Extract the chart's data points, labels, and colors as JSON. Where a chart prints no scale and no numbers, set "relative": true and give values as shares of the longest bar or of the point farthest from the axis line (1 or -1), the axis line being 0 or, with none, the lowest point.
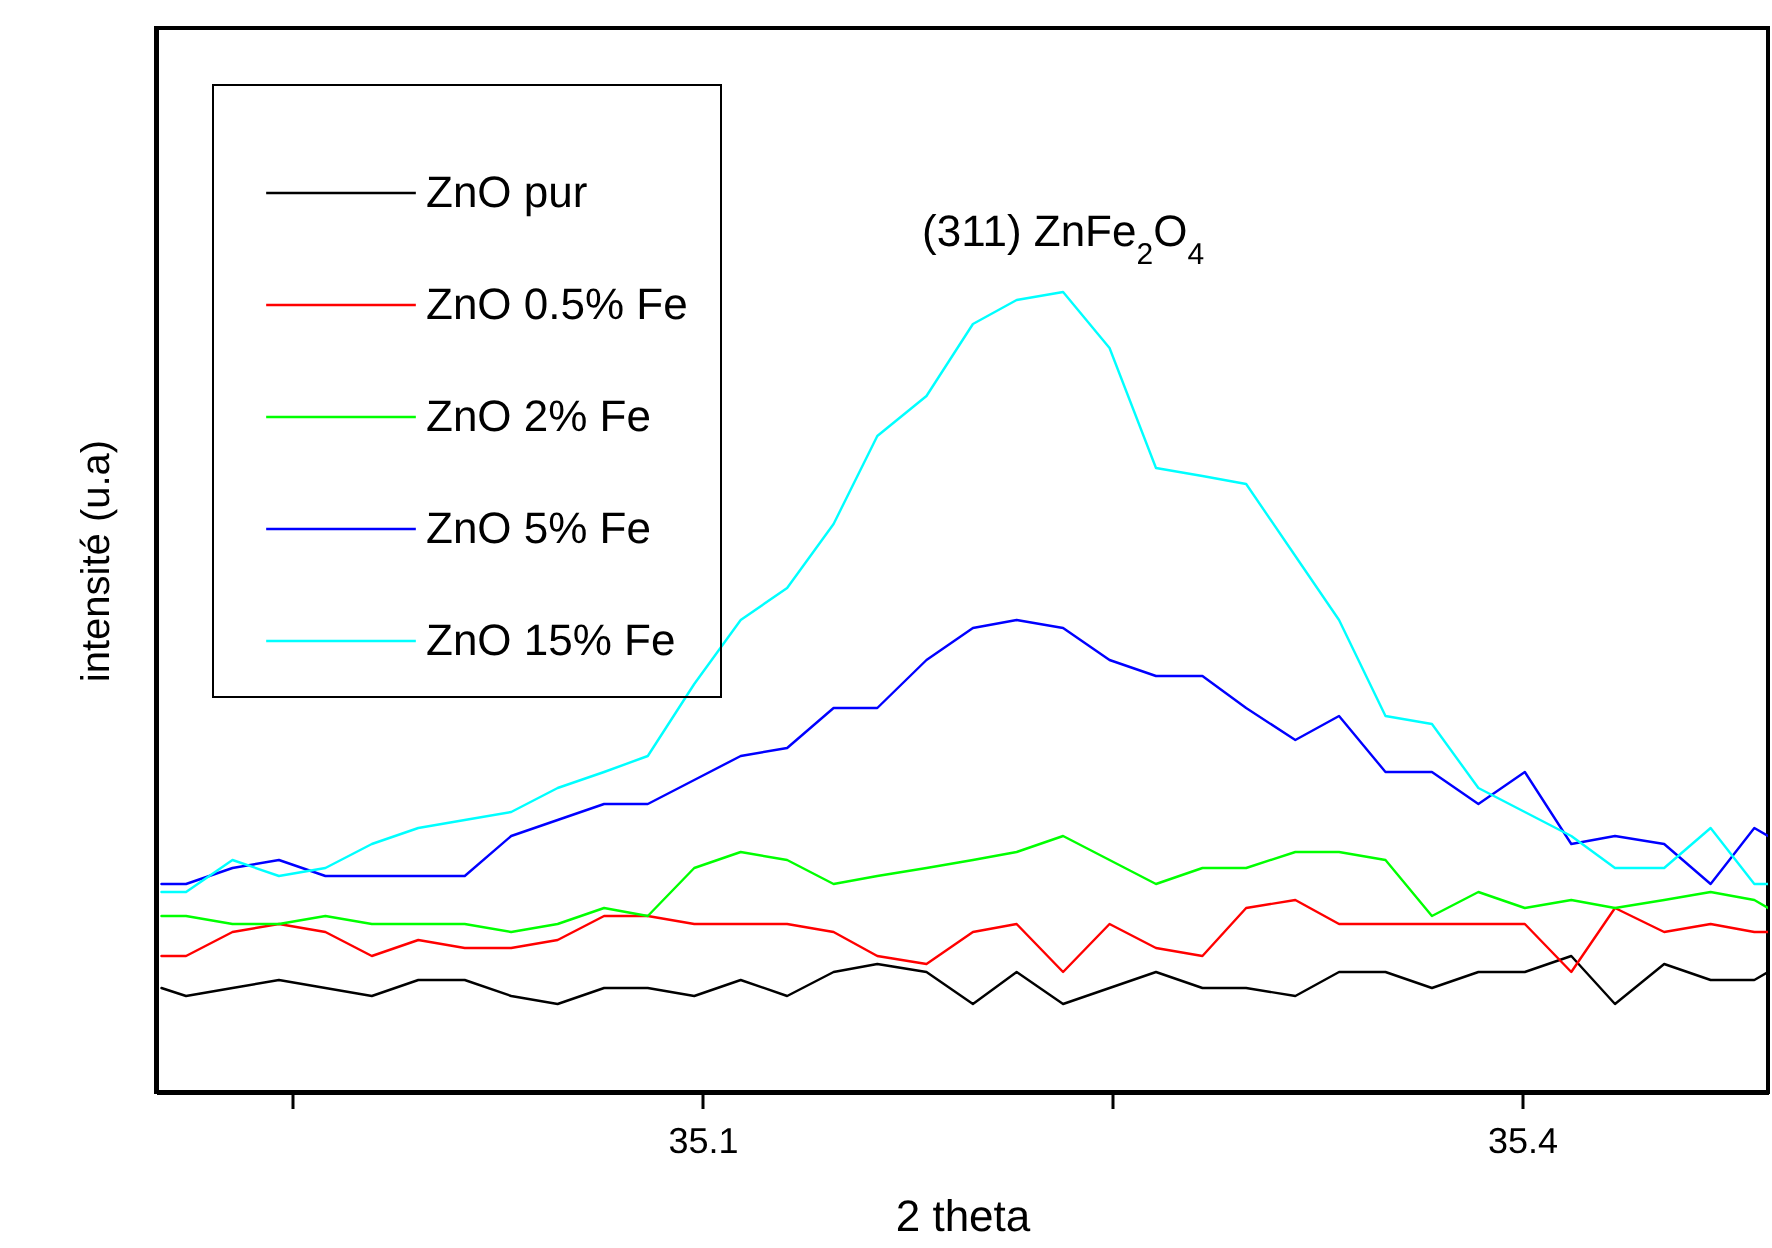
{
  "chart_data": {
    "type": "line",
    "xlabel": "2 theta",
    "ylabel": "intensité (u.a)",
    "relative": true,
    "x": [
      34.902,
      34.911,
      34.928,
      34.945,
      34.962,
      34.979,
      34.996,
      35.013,
      35.03,
      35.047,
      35.064,
      35.08,
      35.097,
      35.114,
      35.131,
      35.148,
      35.164,
      35.182,
      35.199,
      35.215,
      35.232,
      35.249,
      35.266,
      35.283,
      35.299,
      35.317,
      35.333,
      35.35,
      35.367,
      35.384,
      35.401,
      35.418,
      35.434,
      35.452,
      35.469,
      35.485,
      35.49
    ],
    "xlim": [
      34.9,
      35.49
    ],
    "xticks": [
      {
        "value": 34.95,
        "label": null
      },
      35.1,
      {
        "value": 35.25,
        "label": null
      },
      35.4
    ],
    "series": [
      {
        "name": "ZnO pur",
        "color": "#000000",
        "values": [
          0.13,
          0.12,
          0.13,
          0.14,
          0.13,
          0.12,
          0.14,
          0.14,
          0.12,
          0.11,
          0.13,
          0.13,
          0.12,
          0.14,
          0.12,
          0.15,
          0.16,
          0.15,
          0.11,
          0.15,
          0.11,
          0.13,
          0.15,
          0.13,
          0.13,
          0.12,
          0.15,
          0.15,
          0.13,
          0.15,
          0.15,
          0.17,
          0.11,
          0.16,
          0.14,
          0.14,
          0.15
        ]
      },
      {
        "name": "ZnO 0.5% Fe",
        "color": "#ff0000",
        "values": [
          0.17,
          0.17,
          0.2,
          0.21,
          0.2,
          0.17,
          0.19,
          0.18,
          0.18,
          0.19,
          0.22,
          0.22,
          0.21,
          0.21,
          0.21,
          0.2,
          0.17,
          0.16,
          0.2,
          0.21,
          0.15,
          0.21,
          0.18,
          0.17,
          0.23,
          0.24,
          0.21,
          0.21,
          0.21,
          0.21,
          0.21,
          0.15,
          0.23,
          0.2,
          0.21,
          0.2,
          0.2
        ]
      },
      {
        "name": "ZnO 2% Fe",
        "color": "#00ff00",
        "values": [
          0.22,
          0.22,
          0.21,
          0.21,
          0.22,
          0.21,
          0.21,
          0.21,
          0.2,
          0.21,
          0.23,
          0.22,
          0.28,
          0.3,
          0.29,
          0.26,
          0.27,
          0.28,
          0.29,
          0.3,
          0.32,
          0.29,
          0.26,
          0.28,
          0.28,
          0.3,
          0.3,
          0.29,
          0.22,
          0.25,
          0.23,
          0.24,
          0.23,
          0.24,
          0.25,
          0.24,
          0.23
        ]
      },
      {
        "name": "ZnO 5% Fe",
        "color": "#0000ff",
        "values": [
          0.26,
          0.26,
          0.28,
          0.29,
          0.27,
          0.27,
          0.27,
          0.27,
          0.32,
          0.34,
          0.36,
          0.36,
          0.39,
          0.42,
          0.43,
          0.48,
          0.48,
          0.54,
          0.58,
          0.59,
          0.58,
          0.54,
          0.52,
          0.52,
          0.48,
          0.44,
          0.47,
          0.4,
          0.4,
          0.36,
          0.4,
          0.31,
          0.32,
          0.31,
          0.26,
          0.33,
          0.32
        ]
      },
      {
        "name": "ZnO 15% Fe",
        "color": "#00ffff",
        "values": [
          0.25,
          0.25,
          0.29,
          0.27,
          0.28,
          0.31,
          0.33,
          0.34,
          0.35,
          0.38,
          0.4,
          0.42,
          0.51,
          0.59,
          0.63,
          0.71,
          0.82,
          0.87,
          0.96,
          0.99,
          1.0,
          0.93,
          0.78,
          0.77,
          0.76,
          0.67,
          0.59,
          0.47,
          0.46,
          0.38,
          0.35,
          0.32,
          0.28,
          0.28,
          0.33,
          0.26,
          0.26
        ]
      }
    ],
    "annotations": [
      {
        "text": "(311) ZnFe$_{2}$O$_{4}$",
        "x": 35.232,
        "y": 1.0
      }
    ],
    "legend": "top left",
    "grid": false
  }
}
